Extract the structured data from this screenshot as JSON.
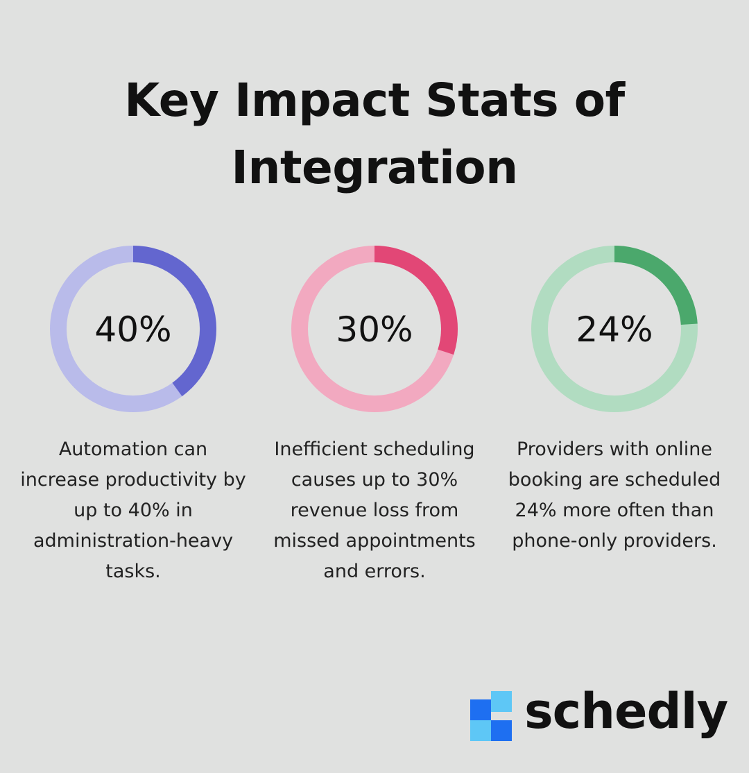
{
  "title": "Key Impact Stats of Integration",
  "chart_data": [
    {
      "type": "pie",
      "variant": "donut",
      "value": 40,
      "label": "40%",
      "description": "Automation can increase productivity by up to 40% in administration-heavy tasks.",
      "color": "#6366cf",
      "track_color": "#b9bbea"
    },
    {
      "type": "pie",
      "variant": "donut",
      "value": 30,
      "label": "30%",
      "description": "Inefficient scheduling causes up to 30% revenue loss from missed appointments and errors.",
      "color": "#e24776",
      "track_color": "#f2a9c0"
    },
    {
      "type": "pie",
      "variant": "donut",
      "value": 24,
      "label": "24%",
      "description": "Providers with online booking are scheduled 24% more often than phone-only providers.",
      "color": "#4ba86c",
      "track_color": "#b1dcc1"
    }
  ],
  "logo": {
    "text": "schedly",
    "icon": "schedly-logo-icon",
    "colors": [
      "#1e6ff1",
      "#5ec7f6"
    ]
  }
}
